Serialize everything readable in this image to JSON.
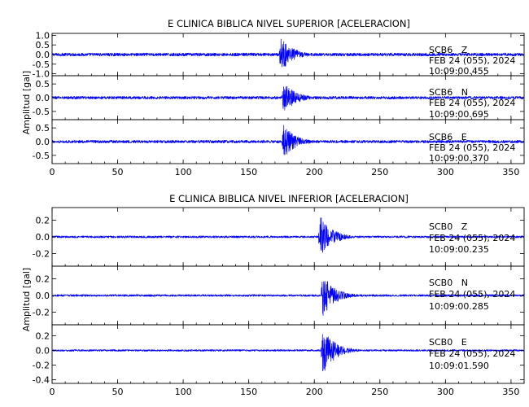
{
  "chart_data": [
    {
      "type": "line",
      "title": "E CLINICA BIBLICA NIVEL SUPERIOR [ACELERACION]",
      "ylabel": "Amplitud [gal]",
      "xlim": [
        0,
        360
      ],
      "xticks": [
        0,
        50,
        100,
        150,
        200,
        250,
        300,
        350
      ],
      "series": [
        {
          "channel": "SCB6   Z",
          "date": "FEB 24 (055), 2024",
          "time": "10:09:00.455",
          "ylim": [
            -1.1,
            1.1
          ],
          "yticks": [
            -1.0,
            -0.5,
            0.0,
            0.5,
            1.0
          ],
          "yticklabels": [
            "-1.0",
            "-0.5",
            "0.0",
            "0.5",
            "1.0"
          ],
          "onset_s": 173,
          "peak_amplitude": 1.1,
          "noise_amplitude": 0.08
        },
        {
          "channel": "SCB6   N",
          "date": "FEB 24 (055), 2024",
          "time": "10:09:00.695",
          "ylim": [
            -0.8,
            0.8
          ],
          "yticks": [
            -0.5,
            0.0,
            0.5
          ],
          "yticklabels": [
            "-0.5",
            "0.0",
            "0.5"
          ],
          "onset_s": 175,
          "peak_amplitude": 0.7,
          "noise_amplitude": 0.05
        },
        {
          "channel": "SCB6   E",
          "date": "FEB 24 (055), 2024",
          "time": "10:09:00.370",
          "ylim": [
            -0.8,
            0.8
          ],
          "yticks": [
            -0.5,
            0.0,
            0.5
          ],
          "yticklabels": [
            "-0.5",
            "0.0",
            "0.5"
          ],
          "onset_s": 175,
          "peak_amplitude": 0.75,
          "noise_amplitude": 0.05
        }
      ]
    },
    {
      "type": "line",
      "title": "E CLINICA BIBLICA NIVEL INFERIOR [ACELERACION]",
      "ylabel": "Amplitud [gal]",
      "xlim": [
        0,
        360
      ],
      "xticks": [
        0,
        50,
        100,
        150,
        200,
        250,
        300,
        350
      ],
      "series": [
        {
          "channel": "SCB0   Z",
          "date": "FEB 24 (055), 2024",
          "time": "10:09:00.235",
          "ylim": [
            -0.35,
            0.35
          ],
          "yticks": [
            -0.2,
            0.0,
            0.2
          ],
          "yticklabels": [
            "-0.2",
            "0.0",
            "0.2"
          ],
          "onset_s": 203,
          "peak_amplitude": 0.3,
          "noise_amplitude": 0.012
        },
        {
          "channel": "SCB0   N",
          "date": "FEB 24 (055), 2024",
          "time": "10:09:00.285",
          "ylim": [
            -0.35,
            0.35
          ],
          "yticks": [
            -0.2,
            0.0,
            0.2
          ],
          "yticklabels": [
            "-0.2",
            "0.0",
            "0.2"
          ],
          "onset_s": 205,
          "peak_amplitude": 0.3,
          "noise_amplitude": 0.012
        },
        {
          "channel": "SCB0   E",
          "date": "FEB 24 (055), 2024",
          "time": "10:09:01.590",
          "ylim": [
            -0.45,
            0.35
          ],
          "yticks": [
            -0.4,
            -0.2,
            0.0,
            0.2
          ],
          "yticklabels": [
            "-0.4",
            "-0.2",
            "0.0",
            "0.2"
          ],
          "onset_s": 205,
          "peak_amplitude": 0.4,
          "noise_amplitude": 0.012
        }
      ]
    }
  ]
}
